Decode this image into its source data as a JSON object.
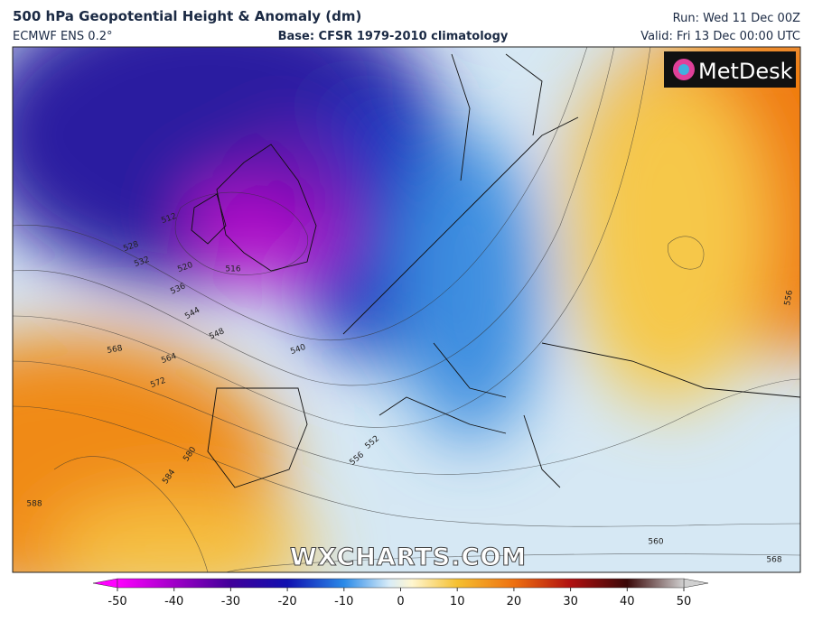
{
  "header": {
    "title": "500 hPa Geopotential Height & Anomaly (dm)",
    "model": "ECMWF ENS 0.2°",
    "base": "Base: CFSR 1979-2010 climatology",
    "run": "Run: Wed 11 Dec 00Z",
    "valid": "Valid: Fri 13 Dec 00:00 UTC"
  },
  "logo": "MetDesk",
  "watermark": "WXCHARTS.COM",
  "contour_labels": [
    512,
    528,
    532,
    520,
    516,
    536,
    544,
    548,
    540,
    568,
    564,
    572,
    580,
    584,
    588,
    552,
    556,
    560,
    568,
    556
  ],
  "colorbar": {
    "range": [
      -50,
      50
    ],
    "ticks": [
      -50,
      -40,
      -30,
      -20,
      -10,
      0,
      10,
      20,
      30,
      40,
      50
    ]
  }
}
